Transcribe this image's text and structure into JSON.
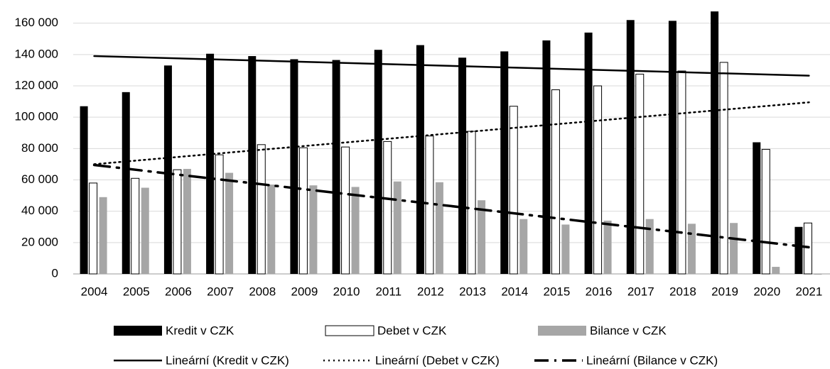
{
  "chart_data": {
    "type": "bar",
    "categories": [
      "2004",
      "2005",
      "2006",
      "2007",
      "2008",
      "2009",
      "2010",
      "2011",
      "2012",
      "2013",
      "2014",
      "2015",
      "2016",
      "2017",
      "2018",
      "2019",
      "2020",
      "2021"
    ],
    "series": [
      {
        "name": "Kredit v CZK",
        "color": "#000000",
        "values": [
          107000,
          116000,
          133000,
          140500,
          139000,
          137000,
          136500,
          143000,
          146000,
          138000,
          142000,
          149000,
          154000,
          162000,
          161500,
          167500,
          84000,
          30000
        ]
      },
      {
        "name": "Debet v CZK",
        "color": "#ffffff",
        "values": [
          58000,
          61000,
          66500,
          76000,
          82500,
          80500,
          81000,
          84500,
          88000,
          91000,
          107000,
          117500,
          120000,
          127500,
          129500,
          135000,
          79500,
          32500
        ]
      },
      {
        "name": "Bilance v CZK",
        "color": "#a6a6a6",
        "values": [
          49000,
          55000,
          67000,
          64500,
          57000,
          56500,
          55500,
          59000,
          58500,
          47000,
          35000,
          31500,
          34000,
          35000,
          32000,
          32500,
          4500,
          -500
        ]
      }
    ],
    "trendlines": [
      {
        "name": "Lineární (Kredit v CZK)",
        "style": "solid",
        "values": [
          139000,
          126500
        ]
      },
      {
        "name": "Lineární (Debet v CZK)",
        "style": "dotted",
        "values": [
          70000,
          109500
        ]
      },
      {
        "name": "Lineární (Bilance v CZK)",
        "style": "dashed",
        "values": [
          69500,
          17000
        ]
      }
    ],
    "ylim": [
      0,
      168000
    ],
    "yticks": [
      0,
      {
        "value": 20000,
        "label": "20 000"
      },
      {
        "value": 40000,
        "label": "40 000"
      },
      {
        "value": 60000,
        "label": "60 000"
      },
      {
        "value": 80000,
        "label": "80 000"
      },
      {
        "value": 100000,
        "label": "100 000"
      },
      {
        "value": 120000,
        "label": "120 000"
      },
      {
        "value": 140000,
        "label": "140 000"
      },
      {
        "value": 160000,
        "label": "160 000"
      }
    ],
    "grid": true
  }
}
